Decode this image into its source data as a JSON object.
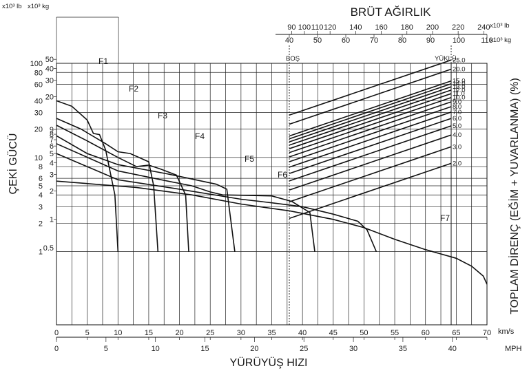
{
  "chart_data": {
    "type": "line",
    "title": "BRÜT AĞIRLIK",
    "ylabel": "ÇEKİ GÜCÜ",
    "xlabel": "YÜRÜYÜŞ HIZI",
    "right_label": "TOPLAM DİRENÇ (EĞİM + YUVARLANMA) (%)",
    "y_units": {
      "lb": "x10³ lb",
      "kg": "x10³ kg"
    },
    "x_units": {
      "kmh": "km/s",
      "mph": "MPH"
    },
    "log_scale_y": true,
    "grid": true,
    "xlim_kmh": [
      0,
      70
    ],
    "x_ticks_kmh": [
      "0",
      "5",
      "10",
      "15",
      "20",
      "25",
      "30",
      "35",
      "40",
      "45",
      "50",
      "55",
      "60",
      "65",
      "70"
    ],
    "x_ticks_mph": [
      "0",
      "5",
      "10",
      "15",
      "20",
      "25",
      "30",
      "35",
      "40"
    ],
    "y_ticks_lb": [
      "100",
      "80",
      "60",
      "40",
      "30",
      "20",
      "10",
      "8",
      "6",
      "5",
      "4",
      "3",
      "2",
      "1"
    ],
    "y_ticks_kg": [
      "50",
      "40",
      "30",
      "20",
      "9",
      "8",
      "7",
      "6",
      "5",
      "4",
      "3",
      "2",
      "1",
      "0.5"
    ],
    "weight_ticks_lb": [
      "90",
      "100",
      "110",
      "120",
      "140",
      "160",
      "180",
      "200",
      "220",
      "240"
    ],
    "weight_ticks_kg": [
      "40",
      "50",
      "60",
      "70",
      "80",
      "90",
      "100",
      "110"
    ],
    "weight_units": {
      "lb": "x10³ lb",
      "kg": "x10³ kg"
    },
    "empty_label": "BOŞ",
    "loaded_label": "YÜKLÜ",
    "resistance_labels": [
      "25.0",
      "20.0",
      "15.0",
      "14.0",
      "13.0",
      "12.0",
      "11.0",
      "10.0",
      "9.0",
      "8.0",
      "7.0",
      "6.0",
      "5.0",
      "4.0",
      "3.0",
      "2.0"
    ],
    "series": [
      {
        "name": "F1",
        "points": [
          [
            0,
            40
          ],
          [
            2.5,
            35
          ],
          [
            5,
            25
          ],
          [
            6,
            18
          ],
          [
            7,
            17.5
          ],
          [
            8,
            12
          ],
          [
            9.5,
            4
          ],
          [
            10,
            1
          ]
        ]
      },
      {
        "name": "F2",
        "points": [
          [
            0,
            26
          ],
          [
            4,
            20
          ],
          [
            8,
            14
          ],
          [
            10,
            11.5
          ],
          [
            12,
            11
          ],
          [
            15,
            9
          ],
          [
            15.8,
            5
          ],
          [
            16.5,
            1
          ]
        ]
      },
      {
        "name": "F3",
        "points": [
          [
            0,
            22
          ],
          [
            5,
            15
          ],
          [
            10,
            10
          ],
          [
            13,
            8
          ],
          [
            15,
            8.3
          ],
          [
            17,
            7.5
          ],
          [
            19.5,
            6.5
          ],
          [
            21,
            4
          ],
          [
            21.5,
            1
          ]
        ]
      },
      {
        "name": "F4",
        "points": [
          [
            0,
            17
          ],
          [
            5,
            11
          ],
          [
            10,
            8.4
          ],
          [
            18,
            6.7
          ],
          [
            21,
            6.1
          ],
          [
            26,
            5.2
          ],
          [
            27.7,
            4.6
          ],
          [
            29,
            1
          ]
        ]
      },
      {
        "name": "F5",
        "points": [
          [
            0,
            14
          ],
          [
            10,
            7.2
          ],
          [
            17,
            5.8
          ],
          [
            22,
            5
          ],
          [
            25,
            4.3
          ],
          [
            27,
            4
          ],
          [
            35,
            3.9
          ],
          [
            38.3,
            3.4
          ],
          [
            41.2,
            2.6
          ],
          [
            42,
            1
          ]
        ]
      },
      {
        "name": "F6",
        "points": [
          [
            0,
            11
          ],
          [
            10,
            5.8
          ],
          [
            20,
            4.6
          ],
          [
            30,
            3.6
          ],
          [
            35,
            3.3
          ],
          [
            40,
            3
          ],
          [
            45,
            2.5
          ],
          [
            49,
            2.1
          ],
          [
            50.5,
            1.7
          ],
          [
            52,
            1
          ]
        ]
      },
      {
        "name": "F7",
        "points": [
          [
            0,
            5.6
          ],
          [
            13,
            4.8
          ],
          [
            22,
            4
          ],
          [
            30,
            3.2
          ],
          [
            38,
            2.7
          ],
          [
            45,
            2.2
          ],
          [
            50,
            1.8
          ],
          [
            55,
            1.35
          ],
          [
            60,
            1.05
          ],
          [
            65,
            0.85
          ],
          [
            67.5,
            0.7
          ],
          [
            69.4,
            0.55
          ],
          [
            70,
            0.45
          ]
        ]
      }
    ]
  }
}
